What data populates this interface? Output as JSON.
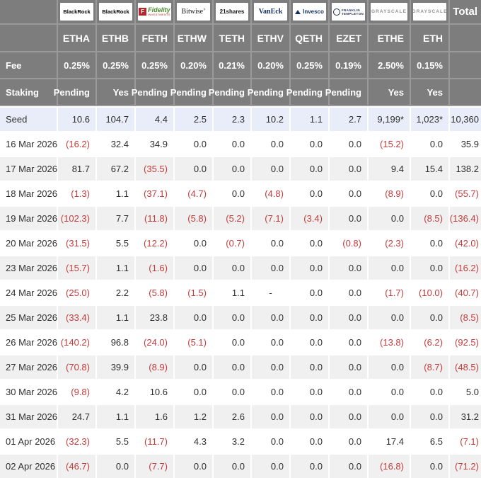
{
  "colors": {
    "header_bg": "#7d7d7d",
    "header_line": "#9a9a9a",
    "header_text": "#ffffff",
    "text": "#2f2f2f",
    "negative_red": "#c43b3b",
    "seed_row_bg": "#e9edf9",
    "stripe_bg": "#f0f0f0",
    "fidelity_red": "#b3282d",
    "fidelity_green": "#4a8b2c",
    "vaneck_navy": "#15305f",
    "invesco_navy": "#15305f",
    "franklin_navy": "#1d2d50",
    "grayscale_gray": "#8f8f8f"
  },
  "chart_data": {
    "type": "table",
    "total_label": "Total",
    "providers": [
      {
        "id": "blackrock",
        "text": "BlackRock"
      },
      {
        "id": "blackrock",
        "text": "BlackRock"
      },
      {
        "id": "fidelity",
        "mark": "F",
        "text": "Fidelity",
        "sub": "INVESTMENTS"
      },
      {
        "id": "bitwise",
        "text": "Bitwise’"
      },
      {
        "id": "21shares",
        "text": "21shares"
      },
      {
        "id": "vaneck",
        "text": "VanEck"
      },
      {
        "id": "invesco",
        "text": "Invesco"
      },
      {
        "id": "franklin-templeton",
        "text": "FRANKLIN",
        "sub": "TEMPLETON"
      },
      {
        "id": "grayscale",
        "text": "GRAYSCALE"
      },
      {
        "id": "grayscale",
        "text": "GRAYSCALE"
      }
    ],
    "tickers": [
      "ETHA",
      "ETHB",
      "FETH",
      "ETHW",
      "TETH",
      "ETHV",
      "QETH",
      "EZET",
      "ETHE",
      "ETH"
    ],
    "fee_row": {
      "label": "Fee",
      "values": [
        "0.25%",
        "0.25%",
        "0.25%",
        "0.20%",
        "0.21%",
        "0.20%",
        "0.25%",
        "0.19%",
        "2.50%",
        "0.15%"
      ]
    },
    "staking_row": {
      "label": "Staking",
      "values": [
        "Pending",
        "Yes",
        "Pending",
        "Pending",
        "Pending",
        "Pending",
        "Pending",
        "Pending",
        "Yes",
        "Yes"
      ]
    },
    "rows": [
      {
        "label": "Seed",
        "highlight": true,
        "values": [
          "10.6",
          "104.7",
          "4.4",
          "2.5",
          "2.3",
          "10.2",
          "1.1",
          "2.7",
          "9,199*",
          "1,023*",
          "10,360"
        ]
      },
      {
        "label": "16 Mar 2026",
        "values": [
          "(16.2)",
          "32.4",
          "34.9",
          "0.0",
          "0.0",
          "0.0",
          "0.0",
          "0.0",
          "(15.2)",
          "0.0",
          "35.9"
        ]
      },
      {
        "label": "17 Mar 2026",
        "values": [
          "81.7",
          "67.2",
          "(35.5)",
          "0.0",
          "0.0",
          "0.0",
          "0.0",
          "0.0",
          "9.4",
          "15.4",
          "138.2"
        ]
      },
      {
        "label": "18 Mar 2026",
        "values": [
          "(1.3)",
          "1.1",
          "(37.1)",
          "(4.7)",
          "0.0",
          "(4.8)",
          "0.0",
          "0.0",
          "(8.9)",
          "0.0",
          "(55.7)"
        ]
      },
      {
        "label": "19 Mar 2026",
        "values": [
          "(102.3)",
          "7.7",
          "(11.8)",
          "(5.8)",
          "(5.2)",
          "(7.1)",
          "(3.4)",
          "0.0",
          "0.0",
          "(8.5)",
          "(136.4)"
        ]
      },
      {
        "label": "20 Mar 2026",
        "values": [
          "(31.5)",
          "5.5",
          "(12.2)",
          "0.0",
          "(0.7)",
          "0.0",
          "0.0",
          "(0.8)",
          "(2.3)",
          "0.0",
          "(42.0)"
        ]
      },
      {
        "label": "23 Mar 2026",
        "values": [
          "(15.7)",
          "1.1",
          "(1.6)",
          "0.0",
          "0.0",
          "0.0",
          "0.0",
          "0.0",
          "0.0",
          "0.0",
          "(16.2)"
        ]
      },
      {
        "label": "24 Mar 2026",
        "values": [
          "(25.0)",
          "2.2",
          "(5.8)",
          "(1.5)",
          "1.1",
          "-",
          "0.0",
          "0.0",
          "(1.7)",
          "(10.0)",
          "(40.7)"
        ]
      },
      {
        "label": "25 Mar 2026",
        "values": [
          "(33.4)",
          "1.1",
          "23.8",
          "0.0",
          "0.0",
          "0.0",
          "0.0",
          "0.0",
          "0.0",
          "0.0",
          "(8.5)"
        ]
      },
      {
        "label": "26 Mar 2026",
        "values": [
          "(140.2)",
          "96.8",
          "(24.0)",
          "(5.1)",
          "0.0",
          "0.0",
          "0.0",
          "0.0",
          "(13.8)",
          "(6.2)",
          "(92.5)"
        ]
      },
      {
        "label": "27 Mar 2026",
        "values": [
          "(70.8)",
          "39.9",
          "(8.9)",
          "0.0",
          "0.0",
          "0.0",
          "0.0",
          "0.0",
          "0.0",
          "(8.7)",
          "(48.5)"
        ]
      },
      {
        "label": "30 Mar 2026",
        "values": [
          "(9.8)",
          "4.2",
          "10.6",
          "0.0",
          "0.0",
          "0.0",
          "0.0",
          "0.0",
          "0.0",
          "0.0",
          "5.0"
        ]
      },
      {
        "label": "31 Mar 2026",
        "values": [
          "24.7",
          "1.1",
          "1.6",
          "1.2",
          "2.6",
          "0.0",
          "0.0",
          "0.0",
          "0.0",
          "0.0",
          "31.2"
        ]
      },
      {
        "label": "01 Apr 2026",
        "values": [
          "(32.3)",
          "5.5",
          "(11.7)",
          "4.3",
          "3.2",
          "0.0",
          "0.0",
          "0.0",
          "17.4",
          "6.5",
          "(7.1)"
        ]
      },
      {
        "label": "02 Apr 2026",
        "values": [
          "(46.7)",
          "0.0",
          "(7.7)",
          "0.0",
          "0.0",
          "0.0",
          "0.0",
          "0.0",
          "(16.8)",
          "0.0",
          "(71.2)"
        ]
      }
    ]
  }
}
